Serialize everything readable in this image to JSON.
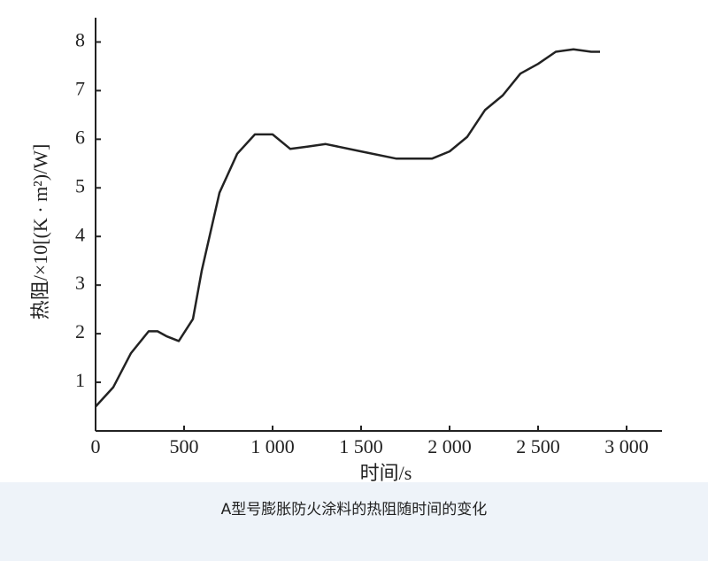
{
  "chart_data": {
    "type": "line",
    "y_label": "热阻/×10[(K · m²)/W]",
    "x_label": "时间/s",
    "caption": "A型号膨胀防火涂料的热阻随时间的变化",
    "x": [
      0,
      100,
      200,
      300,
      350,
      400,
      470,
      550,
      600,
      700,
      800,
      900,
      1000,
      1100,
      1200,
      1300,
      1500,
      1700,
      1900,
      2000,
      2100,
      2200,
      2300,
      2400,
      2500,
      2600,
      2700,
      2800,
      2850
    ],
    "series": [
      {
        "color": "#222222",
        "values": [
          0.5,
          0.9,
          1.6,
          2.05,
          2.05,
          1.95,
          1.85,
          2.3,
          3.3,
          4.9,
          5.7,
          6.1,
          6.1,
          5.8,
          5.85,
          5.9,
          5.75,
          5.6,
          5.6,
          5.75,
          6.05,
          6.6,
          6.9,
          7.35,
          7.55,
          7.8,
          7.85,
          7.8,
          7.8
        ]
      }
    ],
    "xlim": [
      0,
      3200
    ],
    "ylim": [
      0,
      8.5
    ],
    "xticks": [
      0,
      500,
      {
        "value": 1000,
        "label": "1 000"
      },
      {
        "value": 1500,
        "label": "1 500"
      },
      {
        "value": 2000,
        "label": "2 000"
      },
      {
        "value": 2500,
        "label": "2 500"
      },
      {
        "value": 3000,
        "label": "3 000"
      }
    ],
    "yticks": [
      1,
      2,
      3,
      4,
      5,
      6,
      7,
      8
    ]
  }
}
